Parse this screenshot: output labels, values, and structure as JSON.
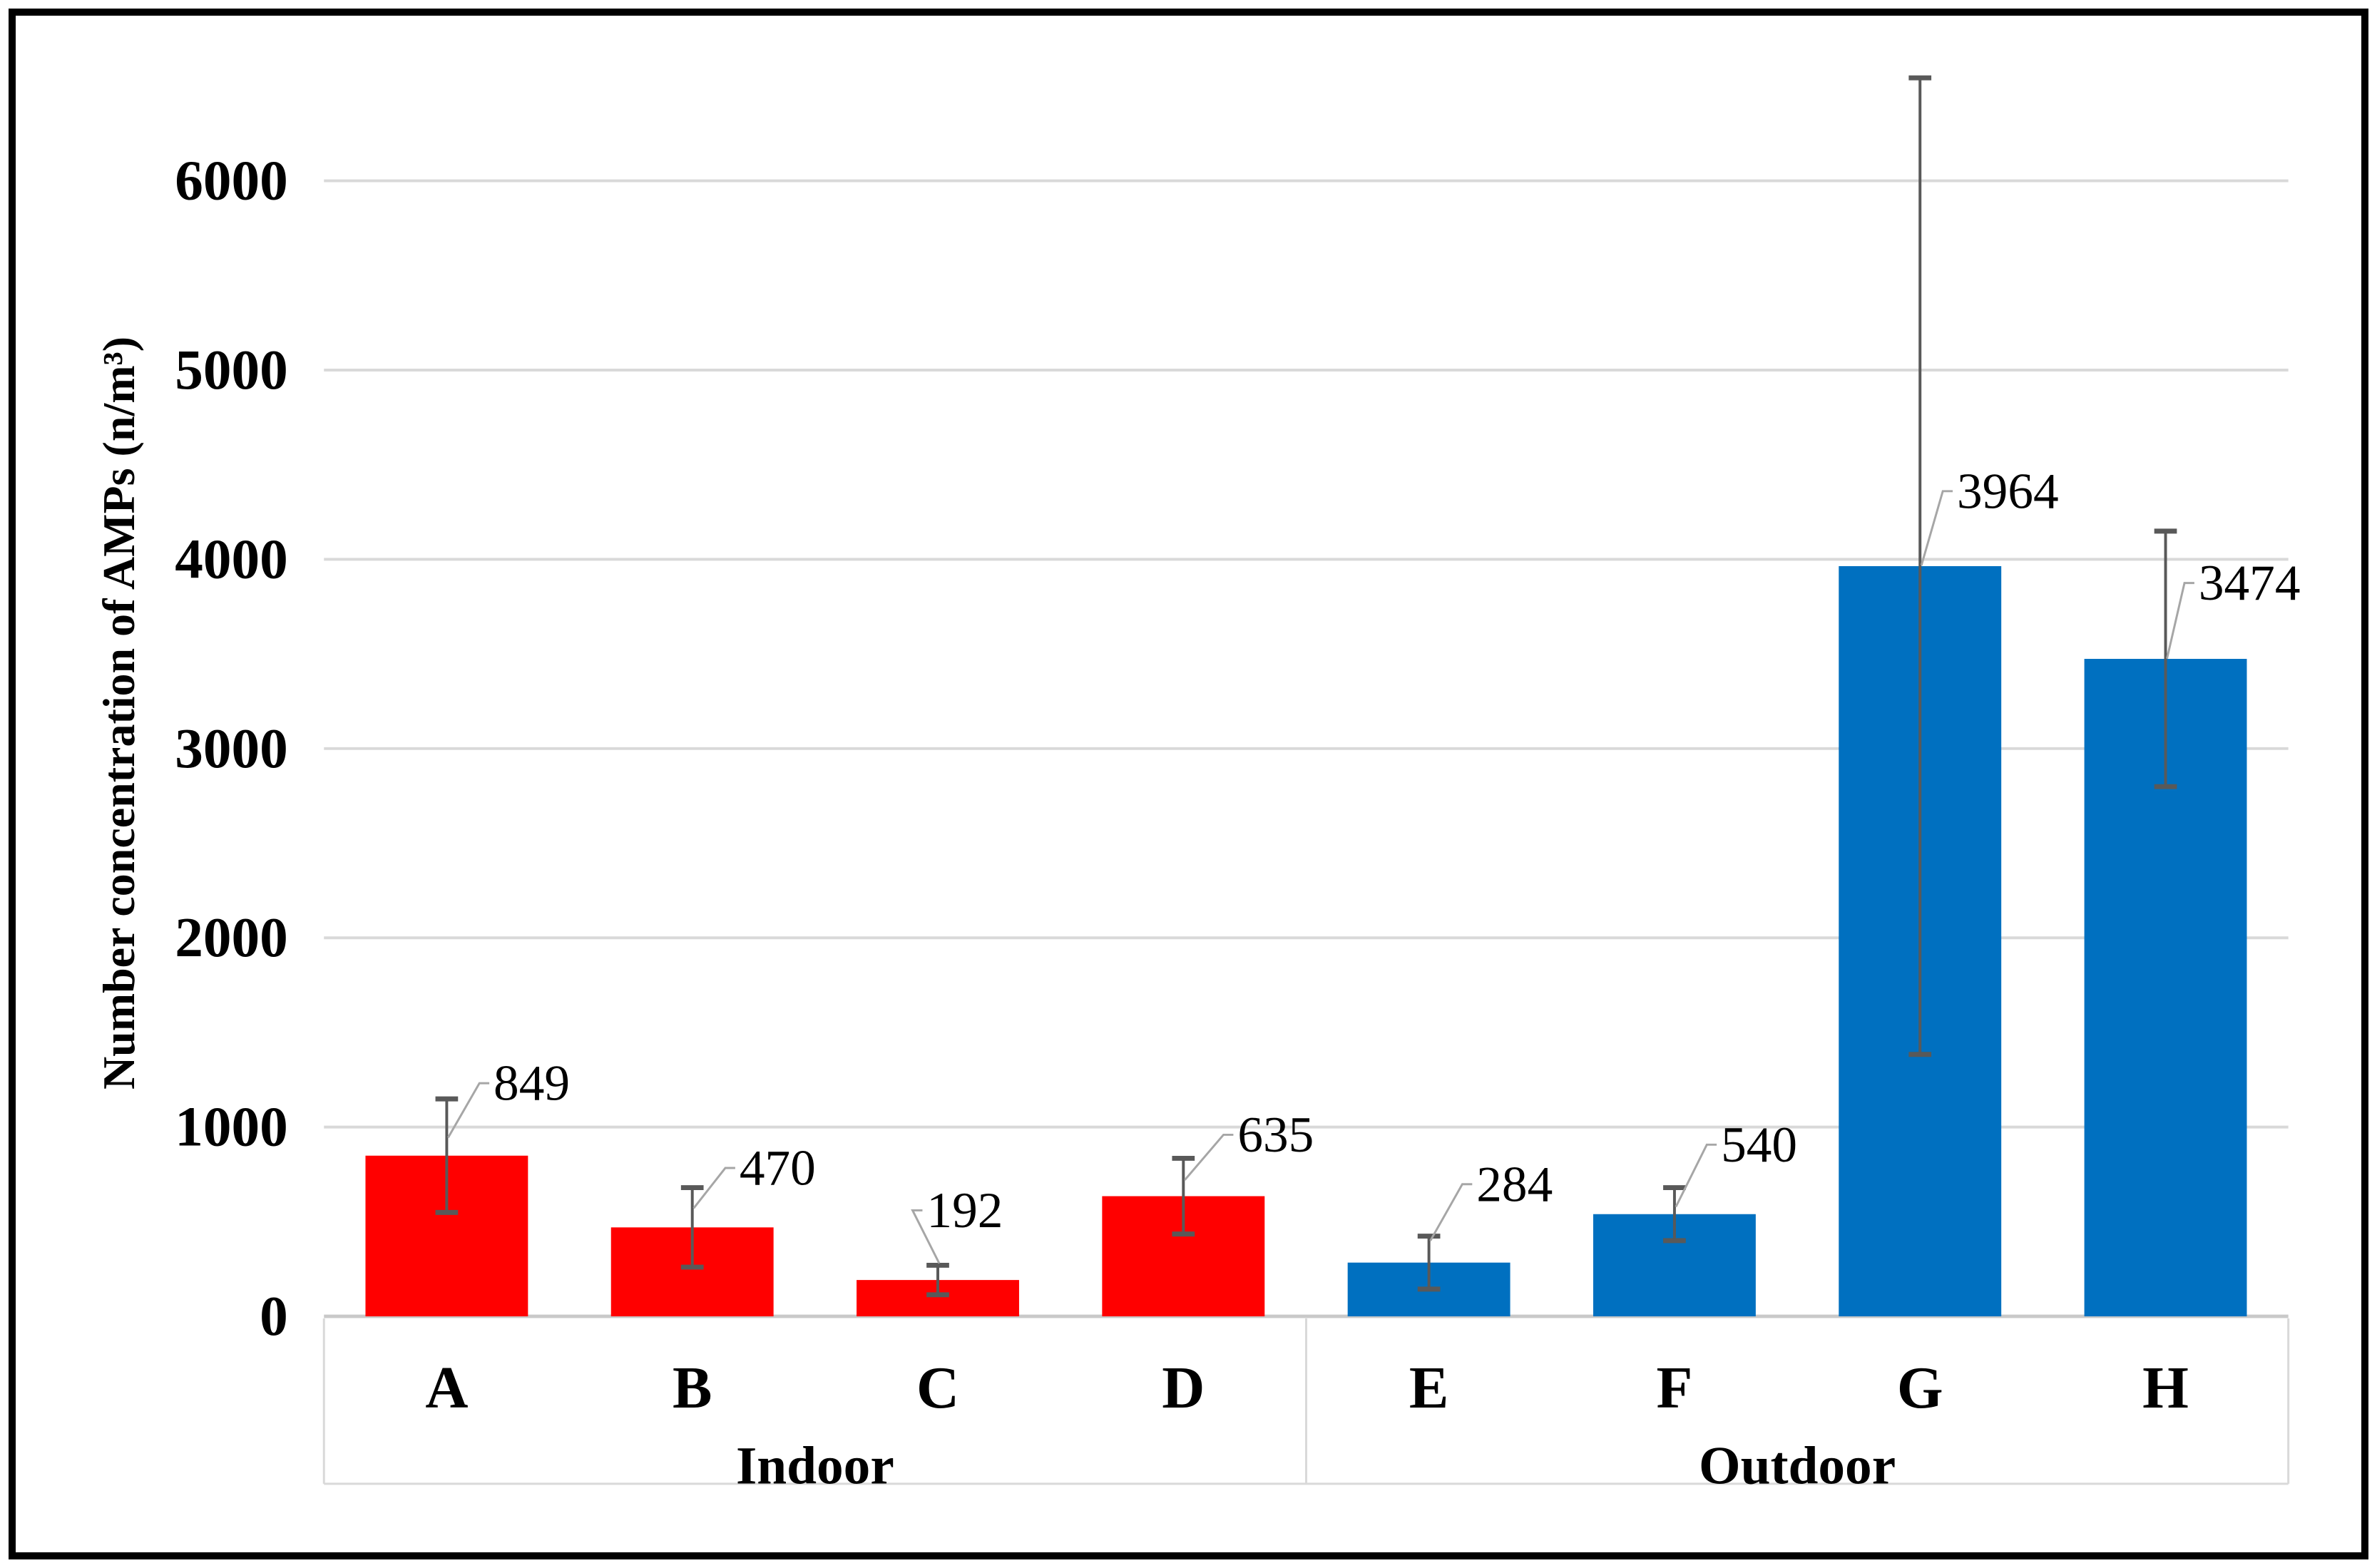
{
  "chart_data": {
    "type": "bar",
    "title": "",
    "xlabel": "",
    "ylabel": "Number concentration of AMPs (n/m³)",
    "ylim": [
      0,
      6600
    ],
    "yticks": [
      0,
      1000,
      2000,
      3000,
      4000,
      5000,
      6000
    ],
    "grid": true,
    "legend": "none",
    "colors": {
      "indoor_bar": "#FF0000",
      "outdoor_bar": "#0070C0",
      "error_bar": "#595959",
      "leader_line": "#A6A6A6",
      "gridline": "#D9D9D9",
      "axis_line": "#C9C9C9",
      "text": "#000000"
    },
    "groups": [
      {
        "label": "Indoor",
        "categories": [
          "A",
          "B",
          "C",
          "D"
        ]
      },
      {
        "label": "Outdoor",
        "categories": [
          "E",
          "F",
          "G",
          "H"
        ]
      }
    ],
    "categories": [
      "A",
      "B",
      "C",
      "D",
      "E",
      "F",
      "G",
      "H"
    ],
    "values": [
      849,
      470,
      192,
      635,
      284,
      540,
      3964,
      3474
    ],
    "errors": [
      300,
      210,
      78,
      200,
      140,
      140,
      2580,
      675
    ],
    "points": [
      {
        "category": "A",
        "group": "Indoor",
        "value": 849,
        "error": 300,
        "data_label": "849",
        "label_pos": {
          "x": 737,
          "y": 1523
        },
        "leader_anchor_y": 1600
      },
      {
        "category": "B",
        "group": "Indoor",
        "value": 470,
        "error": 210,
        "data_label": "470",
        "label_pos": {
          "x": 1085,
          "y": 1643
        },
        "leader_anchor_y": 1700
      },
      {
        "category": "C",
        "group": "Indoor",
        "value": 192,
        "error": 78,
        "data_label": "192",
        "label_pos": {
          "x": 1350,
          "y": 1703
        },
        "leader_anchor_y": 1778
      },
      {
        "category": "D",
        "group": "Indoor",
        "value": 635,
        "error": 200,
        "data_label": "635",
        "label_pos": {
          "x": 1790,
          "y": 1596
        },
        "leader_anchor_y": 1660
      },
      {
        "category": "E",
        "group": "Outdoor",
        "value": 284,
        "error": 140,
        "data_label": "284",
        "label_pos": {
          "x": 2128,
          "y": 1666
        },
        "leader_anchor_y": 1746
      },
      {
        "category": "F",
        "group": "Outdoor",
        "value": 540,
        "error": 140,
        "data_label": "540",
        "label_pos": {
          "x": 2474,
          "y": 1610
        },
        "leader_anchor_y": 1698
      },
      {
        "category": "G",
        "group": "Outdoor",
        "value": 3964,
        "error": 2580,
        "data_label": "3964",
        "label_pos": {
          "x": 2826,
          "y": 685
        },
        "leader_anchor_y": 790
      },
      {
        "category": "H",
        "group": "Outdoor",
        "value": 3474,
        "error": 675,
        "data_label": "3474",
        "label_pos": {
          "x": 3168,
          "y": 815
        },
        "leader_anchor_y": 922
      }
    ]
  }
}
